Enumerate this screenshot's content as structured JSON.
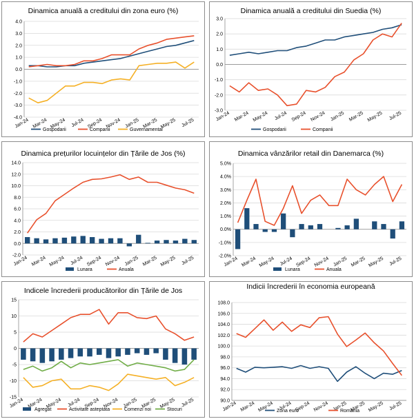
{
  "chart_data": [
    {
      "type": "line",
      "title": "Dinamica anuală a creditului din zona euro (%)",
      "categories": [
        "Jan-24",
        "Feb-24",
        "Mar-24",
        "Apr-24",
        "May-24",
        "Jun-24",
        "Jul-24",
        "Aug-24",
        "Sep-24",
        "Oct-24",
        "Nov-24",
        "Dec-24",
        "Jan-25",
        "Feb-25",
        "Mar-25",
        "Apr-25",
        "May-25",
        "Jun-25",
        "Jul-25"
      ],
      "x_tick_labels": [
        "Jan-24",
        "Mar-24",
        "May-24",
        "Jul-24",
        "Sep-24",
        "Nov-24",
        "Jan-25",
        "Mar-25",
        "May-25",
        "Jul-25"
      ],
      "ylim": [
        -4.0,
        4.0
      ],
      "y_ticks": [
        "-4.0",
        "-3.0",
        "-2.0",
        "-1.0",
        "0.0",
        "1.0",
        "2.0",
        "3.0",
        "4.0"
      ],
      "grid": true,
      "legend_position": "bottom",
      "series": [
        {
          "name": "Gospodarii",
          "color": "#1f4e79",
          "values": [
            0.3,
            0.3,
            0.2,
            0.2,
            0.3,
            0.3,
            0.5,
            0.6,
            0.7,
            0.8,
            0.9,
            1.1,
            1.3,
            1.5,
            1.7,
            1.9,
            2.0,
            2.2,
            2.4
          ]
        },
        {
          "name": "Companii",
          "color": "#e8502c",
          "values": [
            0.2,
            0.3,
            0.4,
            0.3,
            0.3,
            0.4,
            0.7,
            0.7,
            0.9,
            1.2,
            1.2,
            1.2,
            1.7,
            2.0,
            2.2,
            2.5,
            2.6,
            2.7,
            2.8
          ]
        },
        {
          "name": "Guvernamental",
          "color": "#f5b025",
          "values": [
            -2.4,
            -2.8,
            -2.6,
            -2.0,
            -1.4,
            -1.4,
            -1.1,
            -1.1,
            -1.2,
            -0.9,
            -0.8,
            -0.9,
            0.3,
            0.4,
            0.5,
            0.5,
            0.6,
            0.1,
            0.6
          ]
        }
      ]
    },
    {
      "type": "line",
      "title": "Dinamica anuală a creditului din Suedia (%)",
      "categories": [
        "Jan-24",
        "Feb-24",
        "Mar-24",
        "Apr-24",
        "May-24",
        "Jun-24",
        "Jul-24",
        "Aug-24",
        "Sep-24",
        "Oct-24",
        "Nov-24",
        "Dec-24",
        "Jan-25",
        "Feb-25",
        "Mar-25",
        "Apr-25",
        "May-25",
        "Jun-25",
        "Jul-25"
      ],
      "x_tick_labels": [
        "Jan-24",
        "Mar-24",
        "May-24",
        "Jul-24",
        "Sep-24",
        "Nov-24",
        "Jan-25",
        "Mar-25",
        "May-25",
        "Jul-25"
      ],
      "ylim": [
        -3.0,
        3.0
      ],
      "y_ticks": [
        "-3.0",
        "-2.0",
        "-1.0",
        "0.0",
        "1.0",
        "2.0",
        "3.0"
      ],
      "grid": true,
      "legend_position": "bottom",
      "series": [
        {
          "name": "Gospodarii",
          "color": "#1f4e79",
          "values": [
            0.6,
            0.7,
            0.8,
            0.7,
            0.8,
            0.9,
            0.9,
            1.1,
            1.2,
            1.4,
            1.6,
            1.6,
            1.8,
            1.9,
            2.0,
            2.1,
            2.3,
            2.4,
            2.6
          ]
        },
        {
          "name": "Companii",
          "color": "#e8502c",
          "values": [
            -1.4,
            -1.8,
            -1.2,
            -1.7,
            -1.6,
            -2.0,
            -2.7,
            -2.6,
            -1.7,
            -1.8,
            -1.5,
            -0.8,
            -0.5,
            0.3,
            0.7,
            1.6,
            2.0,
            1.8,
            2.7
          ]
        }
      ]
    },
    {
      "type": "bar+line",
      "title": "Dinamica prețurilor locuințelor din Țările de Jos (%)",
      "categories": [
        "Jan-24",
        "Feb-24",
        "Mar-24",
        "Apr-24",
        "May-24",
        "Jun-24",
        "Jul-24",
        "Aug-24",
        "Sep-24",
        "Oct-24",
        "Nov-24",
        "Dec-24",
        "Jan-25",
        "Feb-25",
        "Mar-25",
        "Apr-25",
        "May-25",
        "Jun-25",
        "Jul-25"
      ],
      "x_tick_labels": [
        "Jan-24",
        "Mar-24",
        "May-24",
        "Jul-24",
        "Sep-24",
        "Nov-24",
        "Jan-25",
        "Mar-25",
        "May-25",
        "Jul-25"
      ],
      "ylim": [
        -2.0,
        14.0
      ],
      "y_ticks": [
        "-2.0",
        "0.0",
        "2.0",
        "4.0",
        "6.0",
        "8.0",
        "10.0",
        "12.0",
        "14.0"
      ],
      "grid": true,
      "legend_position": "bottom",
      "series": [
        {
          "name": "Lunara",
          "kind": "bar",
          "color": "#1f4e79",
          "values": [
            1.1,
            0.9,
            0.7,
            0.9,
            1.0,
            1.2,
            1.3,
            1.1,
            0.8,
            0.9,
            0.9,
            -0.5,
            1.5,
            0.1,
            0.5,
            0.6,
            0.5,
            0.8,
            0.6
          ]
        },
        {
          "name": "Anuala",
          "kind": "line",
          "color": "#e8502c",
          "values": [
            1.8,
            4.1,
            5.2,
            7.4,
            8.5,
            9.6,
            10.6,
            11.1,
            11.2,
            11.5,
            11.9,
            11.1,
            11.5,
            10.6,
            10.6,
            10.1,
            9.6,
            9.3,
            8.7
          ]
        }
      ]
    },
    {
      "type": "bar+line",
      "title": "Dinamica vânzărilor retail din Danemarca (%)",
      "categories": [
        "Jan-24",
        "Feb-24",
        "Mar-24",
        "Apr-24",
        "May-24",
        "Jun-24",
        "Jul-24",
        "Aug-24",
        "Sep-24",
        "Oct-24",
        "Nov-24",
        "Dec-24",
        "Jan-25",
        "Feb-25",
        "Mar-25",
        "Apr-25",
        "May-25",
        "Jun-25",
        "Jul-25"
      ],
      "x_tick_labels": [
        "Jan-24",
        "Mar-24",
        "May-24",
        "Jul-24",
        "Sep-24",
        "Nov-24",
        "Jan-25",
        "Mar-25",
        "May-25",
        "Jul-25"
      ],
      "ylim": [
        -2.0,
        5.0
      ],
      "y_ticks": [
        "-2.0%",
        "-1.0%",
        "0.0%",
        "1.0%",
        "2.0%",
        "3.0%",
        "4.0%",
        "5.0%"
      ],
      "grid": true,
      "legend_position": "bottom",
      "series": [
        {
          "name": "Lunara",
          "kind": "bar",
          "color": "#1f4e79",
          "values": [
            -1.5,
            1.6,
            0.4,
            -0.2,
            -0.2,
            1.2,
            -0.6,
            0.4,
            0.3,
            0.4,
            0.0,
            0.1,
            0.3,
            0.8,
            0.0,
            0.6,
            0.4,
            -0.7,
            0.6
          ]
        },
        {
          "name": "Anuala",
          "kind": "line",
          "color": "#e8502c",
          "values": [
            0.5,
            2.2,
            3.8,
            0.6,
            0.3,
            1.6,
            3.3,
            1.2,
            2.2,
            2.6,
            1.8,
            1.8,
            3.8,
            3.0,
            2.6,
            3.4,
            4.0,
            2.1,
            3.4
          ]
        }
      ]
    },
    {
      "type": "bar+line",
      "title": "Indicele încrederii producătorilor din Țările de Jos",
      "categories": [
        "Jan-24",
        "Feb-24",
        "Mar-24",
        "Apr-24",
        "May-24",
        "Jun-24",
        "Jul-24",
        "Aug-24",
        "Sep-24",
        "Oct-24",
        "Nov-24",
        "Dec-24",
        "Jan-25",
        "Feb-25",
        "Mar-25",
        "Apr-25",
        "May-25",
        "Jun-25",
        "Jul-25"
      ],
      "x_tick_labels": [
        "Jan-24",
        "Mar-24",
        "May-24",
        "Jul-24",
        "Sep-24",
        "Nov-24",
        "Jan-25",
        "Mar-25",
        "May-25",
        "Jul-25"
      ],
      "ylim": [
        -15,
        15
      ],
      "y_ticks": [
        "-15",
        "-10",
        "-5",
        "0",
        "5",
        "10",
        "15"
      ],
      "grid": true,
      "legend_position": "bottom",
      "series": [
        {
          "name": "Agregat",
          "kind": "bar",
          "color": "#1f4e79",
          "values": [
            -3.5,
            -4.0,
            -4.5,
            -4.0,
            -3.5,
            -3.0,
            -2.5,
            -2.5,
            -2.0,
            -3.0,
            -2.5,
            -2.0,
            -1.5,
            -2.0,
            -1.5,
            -3.5,
            -4.5,
            -5.0,
            -3.5
          ]
        },
        {
          "name": "Activitate asteptata",
          "kind": "line",
          "color": "#e8502c",
          "values": [
            2,
            4.5,
            3.5,
            5.5,
            7.5,
            9.5,
            10.5,
            10.5,
            12,
            7.5,
            11,
            11,
            9.5,
            9.2,
            10,
            6,
            4.5,
            2.5,
            3.5
          ]
        },
        {
          "name": "Comenzi noi",
          "kind": "line",
          "color": "#f5b025",
          "values": [
            -9,
            -12,
            -11.5,
            -10,
            -9.5,
            -12.5,
            -12.5,
            -11.5,
            -12,
            -13,
            -11,
            -8,
            -8.5,
            -9,
            -9.5,
            -9,
            -11.5,
            -10.5,
            -9
          ]
        },
        {
          "name": "Stocuri",
          "kind": "line",
          "color": "#70ad47",
          "values": [
            -6.5,
            -5.5,
            -7,
            -6,
            -4,
            -6,
            -4.5,
            -5,
            -4.5,
            -4,
            -3.5,
            -5.5,
            -4.5,
            -5,
            -5.5,
            -6,
            -7,
            -6.5,
            -3.5
          ]
        }
      ]
    },
    {
      "type": "line",
      "title": "Indicii încrederii în economia europeană",
      "categories": [
        "Jan-24",
        "Feb-24",
        "Mar-24",
        "Apr-24",
        "May-24",
        "Jun-24",
        "Jul-24",
        "Aug-24",
        "Sep-24",
        "Oct-24",
        "Nov-24",
        "Dec-24",
        "Jan-25",
        "Feb-25",
        "Mar-25",
        "Apr-25",
        "May-25",
        "Jun-25",
        "Jul-25"
      ],
      "x_tick_labels": [
        "Jan-24",
        "Mar-24",
        "May-24",
        "Jul-24",
        "Sep-24",
        "Nov-24",
        "Jan-25",
        "Mar-25",
        "May-25",
        "Jul-25"
      ],
      "ylim": [
        90.0,
        108.0
      ],
      "y_ticks": [
        "90.0",
        "92.0",
        "94.0",
        "96.0",
        "98.0",
        "100.0",
        "102.0",
        "104.0",
        "106.0",
        "108.0"
      ],
      "grid": true,
      "legend_position": "bottom",
      "series": [
        {
          "name": "Zona euro",
          "color": "#1f4e79",
          "values": [
            95.9,
            95.2,
            96.1,
            96.0,
            96.1,
            96.2,
            95.9,
            96.4,
            95.9,
            96.2,
            95.9,
            93.5,
            95.2,
            96.2,
            95.0,
            94.0,
            95.0,
            94.8,
            95.5
          ]
        },
        {
          "name": "Romania",
          "color": "#e8502c",
          "values": [
            102.3,
            101.6,
            103.2,
            104.8,
            102.9,
            104.4,
            102.7,
            103.9,
            103.4,
            105.2,
            105.4,
            102.2,
            99.9,
            101.1,
            102.4,
            100.6,
            99.1,
            96.8,
            94.6
          ]
        }
      ]
    }
  ]
}
